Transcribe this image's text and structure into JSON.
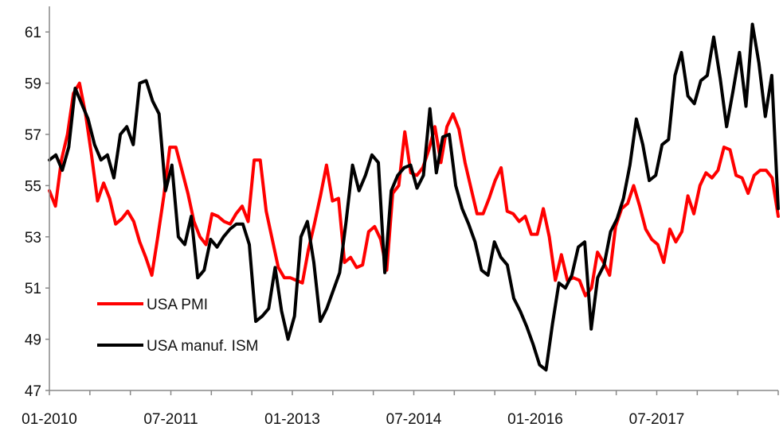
{
  "chart_data": {
    "type": "line",
    "title": "",
    "xlabel": "",
    "ylabel": "",
    "ylim": [
      47,
      62
    ],
    "yticks": [
      47,
      49,
      51,
      53,
      55,
      57,
      59,
      61
    ],
    "x_tick_labels": [
      "01-2010",
      "07-2011",
      "01-2013",
      "07-2014",
      "01-2016",
      "07-2017"
    ],
    "x_tick_month_index": [
      0,
      18,
      36,
      54,
      72,
      90
    ],
    "x_range_month_index": [
      0,
      108
    ],
    "grid": false,
    "legend_position": "lower-left",
    "series": [
      {
        "name": "USA PMI",
        "color": "#ff0000",
        "values": [
          54.8,
          54.2,
          56.0,
          57.0,
          58.6,
          59.0,
          57.8,
          56.2,
          54.4,
          55.1,
          54.5,
          53.5,
          53.7,
          54.0,
          53.6,
          52.8,
          52.2,
          51.5,
          53.0,
          54.6,
          56.5,
          56.5,
          55.6,
          54.7,
          53.6,
          53.0,
          52.7,
          53.9,
          53.8,
          53.6,
          53.5,
          53.9,
          54.2,
          53.6,
          56.0,
          56.0,
          54.0,
          52.9,
          51.8,
          51.4,
          51.4,
          51.3,
          51.2,
          52.5,
          53.5,
          54.6,
          55.8,
          54.4,
          54.5,
          52.0,
          52.2,
          51.8,
          51.9,
          53.2,
          53.4,
          52.9,
          51.7,
          54.7,
          55.0,
          57.1,
          55.5,
          55.4,
          55.7,
          56.4,
          57.3,
          55.9,
          57.3,
          57.8,
          57.2,
          55.9,
          54.9,
          53.9,
          53.9,
          54.5,
          55.2,
          55.7,
          54.0,
          53.9,
          53.6,
          53.8,
          53.1,
          53.1,
          54.1,
          53.0,
          51.3,
          52.3,
          51.3,
          51.4,
          51.3,
          50.7,
          51.0,
          52.4,
          52.0,
          51.5,
          53.4,
          54.1,
          54.3,
          55.0,
          54.2,
          53.3,
          52.9,
          52.7,
          52.0,
          53.3,
          52.8,
          53.2,
          54.6,
          53.9,
          55.0,
          55.5,
          55.3,
          55.6,
          56.5,
          56.4,
          55.4,
          55.3,
          54.7,
          55.4,
          55.6,
          55.6,
          55.3,
          53.8
        ]
      },
      {
        "name": "USA manuf. ISM",
        "color": "#000000",
        "values": [
          56.0,
          56.2,
          55.6,
          56.5,
          58.8,
          58.2,
          57.6,
          56.6,
          56.0,
          56.2,
          55.3,
          57.0,
          57.3,
          56.6,
          59.0,
          59.1,
          58.3,
          57.8,
          54.8,
          55.8,
          53.0,
          52.7,
          53.8,
          51.4,
          51.7,
          52.9,
          52.6,
          53.0,
          53.3,
          53.5,
          53.5,
          52.7,
          49.7,
          49.9,
          50.2,
          51.8,
          50.1,
          49.0,
          49.9,
          53.0,
          53.6,
          52.0,
          49.7,
          50.2,
          50.9,
          51.6,
          53.6,
          55.8,
          54.8,
          55.4,
          56.2,
          55.9,
          51.6,
          54.8,
          55.4,
          55.7,
          55.8,
          54.9,
          55.4,
          58.0,
          55.5,
          56.9,
          57.0,
          55.0,
          54.1,
          53.5,
          52.8,
          51.7,
          51.5,
          52.8,
          52.2,
          51.9,
          50.6,
          50.1,
          49.5,
          48.8,
          48.0,
          47.8,
          49.6,
          51.2,
          51.0,
          51.5,
          52.6,
          52.8,
          49.4,
          51.4,
          51.9,
          53.2,
          53.7,
          54.5,
          55.8,
          57.6,
          56.6,
          55.2,
          55.4,
          56.6,
          56.8,
          59.3,
          60.2,
          58.5,
          58.2,
          59.1,
          59.3,
          60.8,
          59.2,
          57.3,
          58.7,
          60.2,
          58.1,
          61.3,
          59.8,
          57.7,
          59.3,
          54.1
        ]
      }
    ]
  }
}
